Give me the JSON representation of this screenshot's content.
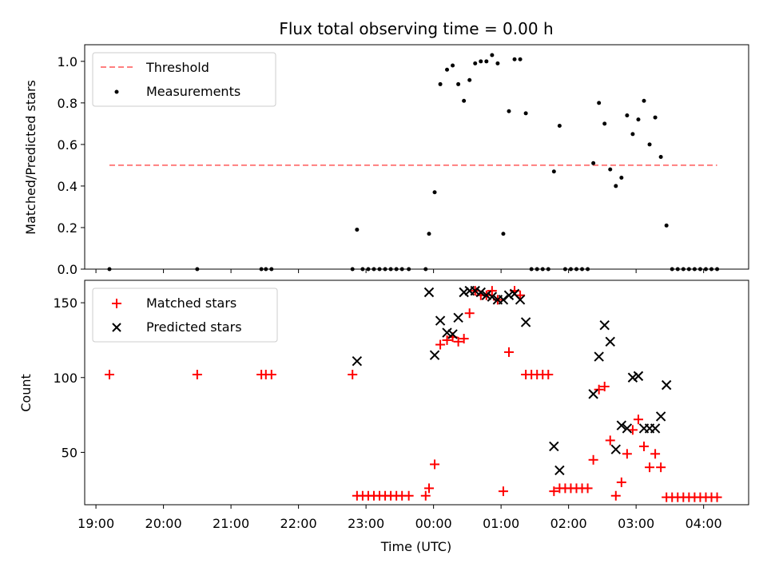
{
  "figure": {
    "title": "Flux total observing time = 0.00 h",
    "xlabel": "Time (UTC)"
  },
  "chart_data": [
    {
      "type": "scatter",
      "panel": "top",
      "ylabel": "Matched/Predicted stars",
      "xlim": [
        "18:50",
        "04:40"
      ],
      "ylim": [
        0,
        1.08
      ],
      "x_ticks": [
        "19:00",
        "20:00",
        "21:00",
        "22:00",
        "23:00",
        "00:00",
        "01:00",
        "02:00",
        "03:00",
        "04:00"
      ],
      "y_ticks": [
        "0.0",
        "0.2",
        "0.4",
        "0.6",
        "0.8",
        "1.0"
      ],
      "legend": {
        "position": "top-left",
        "entries": [
          "Threshold",
          "Measurements"
        ]
      },
      "series": [
        {
          "name": "Threshold",
          "kind": "dashed-line",
          "color": "#ff7f7f",
          "x": [
            "19:12",
            "04:12"
          ],
          "y": [
            0.5,
            0.5
          ]
        },
        {
          "name": "Measurements",
          "kind": "dot",
          "color": "#000000",
          "points": [
            [
              "19:12",
              0.0
            ],
            [
              "20:30",
              0.0
            ],
            [
              "21:27",
              0.0
            ],
            [
              "21:31",
              0.0
            ],
            [
              "21:36",
              0.0
            ],
            [
              "22:48",
              0.0
            ],
            [
              "22:52",
              0.19
            ],
            [
              "22:57",
              0.0
            ],
            [
              "23:02",
              0.0
            ],
            [
              "23:07",
              0.0
            ],
            [
              "23:12",
              0.0
            ],
            [
              "23:17",
              0.0
            ],
            [
              "23:22",
              0.0
            ],
            [
              "23:27",
              0.0
            ],
            [
              "23:32",
              0.0
            ],
            [
              "23:38",
              0.0
            ],
            [
              "23:53",
              0.0
            ],
            [
              "23:56",
              0.17
            ],
            [
              "00:01",
              0.37
            ],
            [
              "00:06",
              0.89
            ],
            [
              "00:12",
              0.96
            ],
            [
              "00:17",
              0.98
            ],
            [
              "00:22",
              0.89
            ],
            [
              "00:27",
              0.81
            ],
            [
              "00:32",
              0.91
            ],
            [
              "00:37",
              0.99
            ],
            [
              "00:42",
              1.0
            ],
            [
              "00:47",
              1.0
            ],
            [
              "00:52",
              1.03
            ],
            [
              "00:57",
              0.99
            ],
            [
              "01:02",
              0.17
            ],
            [
              "01:07",
              0.76
            ],
            [
              "01:12",
              1.01
            ],
            [
              "01:17",
              1.01
            ],
            [
              "01:22",
              0.75
            ],
            [
              "01:27",
              0.0
            ],
            [
              "01:32",
              0.0
            ],
            [
              "01:37",
              0.0
            ],
            [
              "01:42",
              0.0
            ],
            [
              "01:47",
              0.47
            ],
            [
              "01:52",
              0.69
            ],
            [
              "01:57",
              0.0
            ],
            [
              "02:02",
              0.0
            ],
            [
              "02:07",
              0.0
            ],
            [
              "02:12",
              0.0
            ],
            [
              "02:17",
              0.0
            ],
            [
              "02:22",
              0.51
            ],
            [
              "02:27",
              0.8
            ],
            [
              "02:32",
              0.7
            ],
            [
              "02:37",
              0.48
            ],
            [
              "02:42",
              0.4
            ],
            [
              "02:47",
              0.44
            ],
            [
              "02:52",
              0.74
            ],
            [
              "02:57",
              0.65
            ],
            [
              "03:02",
              0.72
            ],
            [
              "03:07",
              0.81
            ],
            [
              "03:12",
              0.6
            ],
            [
              "03:17",
              0.73
            ],
            [
              "03:22",
              0.54
            ],
            [
              "03:27",
              0.21
            ],
            [
              "03:32",
              0.0
            ],
            [
              "03:37",
              0.0
            ],
            [
              "03:42",
              0.0
            ],
            [
              "03:47",
              0.0
            ],
            [
              "03:52",
              0.0
            ],
            [
              "03:57",
              0.0
            ],
            [
              "04:02",
              0.0
            ],
            [
              "04:07",
              0.0
            ],
            [
              "04:12",
              0.0
            ]
          ]
        }
      ]
    },
    {
      "type": "scatter",
      "panel": "bottom",
      "ylabel": "Count",
      "xlim": [
        "18:50",
        "04:40"
      ],
      "ylim": [
        15,
        165
      ],
      "x_ticks": [
        "19:00",
        "20:00",
        "21:00",
        "22:00",
        "23:00",
        "00:00",
        "01:00",
        "02:00",
        "03:00",
        "04:00"
      ],
      "y_ticks": [
        "50",
        "100",
        "150"
      ],
      "legend": {
        "position": "top-left",
        "entries": [
          "Matched stars",
          "Predicted stars"
        ]
      },
      "series": [
        {
          "name": "Matched stars",
          "marker": "+",
          "color": "#ff0000",
          "points": [
            [
              "19:12",
              102
            ],
            [
              "20:30",
              102
            ],
            [
              "21:27",
              102
            ],
            [
              "21:31",
              102
            ],
            [
              "21:36",
              102
            ],
            [
              "22:48",
              102
            ],
            [
              "22:52",
              21
            ],
            [
              "22:57",
              21
            ],
            [
              "23:02",
              21
            ],
            [
              "23:07",
              21
            ],
            [
              "23:12",
              21
            ],
            [
              "23:17",
              21
            ],
            [
              "23:22",
              21
            ],
            [
              "23:27",
              21
            ],
            [
              "23:32",
              21
            ],
            [
              "23:38",
              21
            ],
            [
              "23:53",
              21
            ],
            [
              "23:56",
              26
            ],
            [
              "00:01",
              42
            ],
            [
              "00:06",
              122
            ],
            [
              "00:12",
              125
            ],
            [
              "00:17",
              127
            ],
            [
              "00:22",
              124
            ],
            [
              "00:27",
              126
            ],
            [
              "00:32",
              143
            ],
            [
              "00:37",
              158
            ],
            [
              "00:42",
              155
            ],
            [
              "00:47",
              155
            ],
            [
              "00:52",
              158
            ],
            [
              "00:57",
              152
            ],
            [
              "01:02",
              24
            ],
            [
              "01:07",
              117
            ],
            [
              "01:12",
              158
            ],
            [
              "01:17",
              155
            ],
            [
              "01:22",
              102
            ],
            [
              "01:27",
              102
            ],
            [
              "01:32",
              102
            ],
            [
              "01:37",
              102
            ],
            [
              "01:42",
              102
            ],
            [
              "01:47",
              24
            ],
            [
              "01:52",
              26
            ],
            [
              "01:57",
              26
            ],
            [
              "02:02",
              26
            ],
            [
              "02:07",
              26
            ],
            [
              "02:12",
              26
            ],
            [
              "02:17",
              26
            ],
            [
              "02:22",
              45
            ],
            [
              "02:27",
              92
            ],
            [
              "02:32",
              94
            ],
            [
              "02:37",
              58
            ],
            [
              "02:42",
              21
            ],
            [
              "02:47",
              30
            ],
            [
              "02:52",
              49
            ],
            [
              "02:57",
              65
            ],
            [
              "03:02",
              72
            ],
            [
              "03:07",
              54
            ],
            [
              "03:12",
              40
            ],
            [
              "03:17",
              49
            ],
            [
              "03:22",
              40
            ],
            [
              "03:27",
              20
            ],
            [
              "03:32",
              20
            ],
            [
              "03:37",
              20
            ],
            [
              "03:42",
              20
            ],
            [
              "03:47",
              20
            ],
            [
              "03:52",
              20
            ],
            [
              "03:57",
              20
            ],
            [
              "04:02",
              20
            ],
            [
              "04:07",
              20
            ],
            [
              "04:12",
              20
            ]
          ]
        },
        {
          "name": "Predicted stars",
          "marker": "x",
          "color": "#000000",
          "points": [
            [
              "22:52",
              111
            ],
            [
              "23:56",
              157
            ],
            [
              "00:01",
              115
            ],
            [
              "00:06",
              138
            ],
            [
              "00:12",
              130
            ],
            [
              "00:17",
              129
            ],
            [
              "00:22",
              140
            ],
            [
              "00:27",
              157
            ],
            [
              "00:32",
              158
            ],
            [
              "00:37",
              158
            ],
            [
              "00:42",
              157
            ],
            [
              "00:47",
              155
            ],
            [
              "00:52",
              154
            ],
            [
              "00:57",
              152
            ],
            [
              "01:02",
              152
            ],
            [
              "01:07",
              155
            ],
            [
              "01:12",
              156
            ],
            [
              "01:17",
              152
            ],
            [
              "01:22",
              137
            ],
            [
              "01:47",
              54
            ],
            [
              "01:52",
              38
            ],
            [
              "02:22",
              89
            ],
            [
              "02:27",
              114
            ],
            [
              "02:32",
              135
            ],
            [
              "02:37",
              124
            ],
            [
              "02:42",
              52
            ],
            [
              "02:47",
              68
            ],
            [
              "02:52",
              66
            ],
            [
              "02:57",
              100
            ],
            [
              "03:02",
              101
            ],
            [
              "03:07",
              66
            ],
            [
              "03:12",
              66
            ],
            [
              "03:17",
              66
            ],
            [
              "03:22",
              74
            ],
            [
              "03:27",
              95
            ]
          ]
        }
      ]
    }
  ]
}
